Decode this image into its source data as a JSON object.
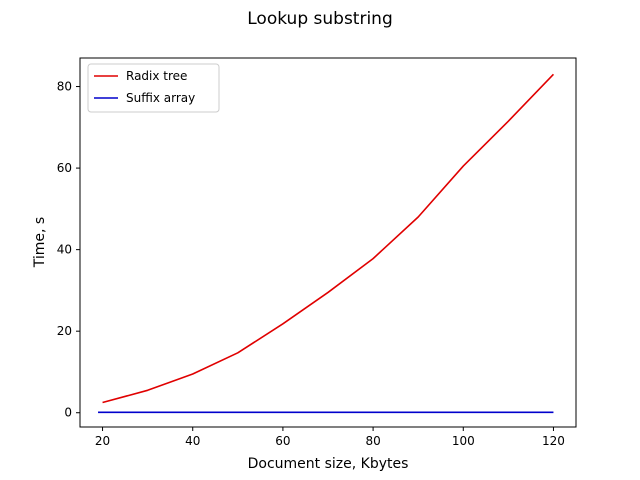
{
  "chart_data": {
    "type": "line",
    "title": "Lookup substring",
    "xlabel": "Document size, Kbytes",
    "ylabel": "Time, s",
    "xlim": [
      15,
      125
    ],
    "ylim": [
      -3.5,
      87
    ],
    "xticks": [
      20,
      40,
      60,
      80,
      100,
      120
    ],
    "yticks": [
      0,
      20,
      40,
      60,
      80
    ],
    "grid": false,
    "legend_position": "top-left",
    "series": [
      {
        "name": "Radix tree",
        "color": "#e00000",
        "x": [
          20,
          30,
          40,
          50,
          60,
          70,
          80,
          90,
          100,
          110,
          120
        ],
        "y": [
          2.5,
          5.5,
          9.5,
          14.7,
          21.8,
          29.5,
          37.8,
          48,
          60.5,
          71.5,
          83
        ]
      },
      {
        "name": "Suffix array",
        "color": "#0000cc",
        "x": [
          19,
          30,
          40,
          50,
          60,
          70,
          80,
          90,
          100,
          110,
          120
        ],
        "y": [
          0.1,
          0.1,
          0.1,
          0.1,
          0.1,
          0.1,
          0.1,
          0.1,
          0.1,
          0.1,
          0.1
        ]
      }
    ]
  }
}
